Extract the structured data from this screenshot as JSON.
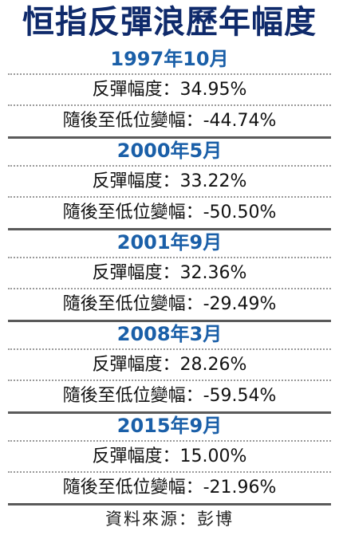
{
  "title": "恒指反彈浪歷年幅度",
  "entries": [
    {
      "period": "1997年10月",
      "rebound": "反彈幅度：34.95%",
      "fall": "隨後至低位變幅：-44.74%"
    },
    {
      "period": "2000年5月",
      "rebound": "反彈幅度：33.22%",
      "fall": "隨後至低位變幅：-50.50%"
    },
    {
      "period": "2001年9月",
      "rebound": "反彈幅度：32.36%",
      "fall": "隨後至低位變幅：-29.49%"
    },
    {
      "period": "2008年3月",
      "rebound": "反彈幅度：28.26%",
      "fall": "隨後至低位變幅：-59.54%"
    },
    {
      "period": "2015年9月",
      "rebound": "反彈幅度：15.00%",
      "fall": "隨後至低位變幅：-21.96%"
    }
  ],
  "source": "資料來源：彭博"
}
